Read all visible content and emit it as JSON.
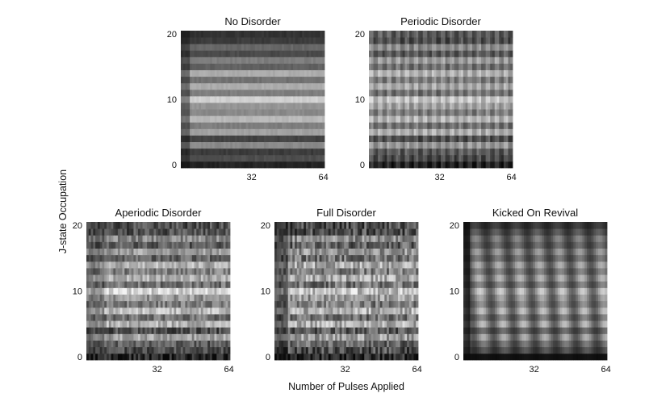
{
  "figure": {
    "xlabel": "Number of Pulses Applied",
    "ylabel": "J-state Occupation"
  },
  "chart_data": [
    {
      "type": "heatmap",
      "title": "No Disorder",
      "xlim": [
        1,
        64
      ],
      "ylim": [
        0,
        20
      ],
      "xticks": [
        "32",
        "64"
      ],
      "yticks": [
        "0",
        "10",
        "20"
      ],
      "colormap": "gray",
      "rows": 21,
      "cols": 64,
      "row_levels": [
        0.12,
        0.3,
        0.22,
        0.55,
        0.25,
        0.65,
        0.5,
        0.75,
        0.55,
        0.6,
        0.85,
        0.5,
        0.7,
        0.45,
        0.7,
        0.38,
        0.5,
        0.28,
        0.4,
        0.22,
        0.18
      ],
      "pattern": "uniform"
    },
    {
      "type": "heatmap",
      "title": "Periodic Disorder",
      "xlim": [
        1,
        64
      ],
      "ylim": [
        0,
        20
      ],
      "xticks": [
        "32",
        "64"
      ],
      "yticks": [
        "0",
        "10",
        "20"
      ],
      "colormap": "gray",
      "rows": 21,
      "cols": 64,
      "row_levels": [
        0.12,
        0.28,
        0.35,
        0.6,
        0.3,
        0.7,
        0.45,
        0.72,
        0.5,
        0.65,
        0.78,
        0.45,
        0.68,
        0.5,
        0.72,
        0.45,
        0.62,
        0.35,
        0.55,
        0.3,
        0.35
      ],
      "pattern": "periodic"
    },
    {
      "type": "heatmap",
      "title": "Aperiodic Disorder",
      "xlim": [
        1,
        64
      ],
      "ylim": [
        0,
        20
      ],
      "xticks": [
        "32",
        "64"
      ],
      "yticks": [
        "0",
        "10",
        "20"
      ],
      "colormap": "gray",
      "rows": 21,
      "cols": 64,
      "row_levels": [
        0.12,
        0.3,
        0.35,
        0.65,
        0.3,
        0.72,
        0.45,
        0.75,
        0.5,
        0.6,
        0.85,
        0.45,
        0.7,
        0.5,
        0.72,
        0.4,
        0.62,
        0.35,
        0.55,
        0.3,
        0.3
      ],
      "pattern": "aperiodic"
    },
    {
      "type": "heatmap",
      "title": "Full Disorder",
      "xlim": [
        1,
        64
      ],
      "ylim": [
        0,
        20
      ],
      "xticks": [
        "32",
        "64"
      ],
      "yticks": [
        "0",
        "10",
        "20"
      ],
      "colormap": "gray",
      "rows": 21,
      "cols": 64,
      "row_levels": [
        0.12,
        0.3,
        0.4,
        0.65,
        0.35,
        0.7,
        0.45,
        0.72,
        0.5,
        0.62,
        0.8,
        0.45,
        0.68,
        0.5,
        0.7,
        0.45,
        0.6,
        0.38,
        0.55,
        0.3,
        0.3
      ],
      "pattern": "full"
    },
    {
      "type": "heatmap",
      "title": "Kicked On Revival",
      "xlim": [
        1,
        64
      ],
      "ylim": [
        0,
        20
      ],
      "xticks": [
        "32",
        "64"
      ],
      "yticks": [
        "0",
        "10",
        "20"
      ],
      "colormap": "gray",
      "rows": 21,
      "cols": 64,
      "row_levels": [
        0.05,
        0.35,
        0.5,
        0.72,
        0.45,
        0.78,
        0.55,
        0.8,
        0.6,
        0.7,
        0.85,
        0.55,
        0.75,
        0.55,
        0.72,
        0.5,
        0.65,
        0.45,
        0.55,
        0.38,
        0.25
      ],
      "pattern": "revival"
    }
  ]
}
